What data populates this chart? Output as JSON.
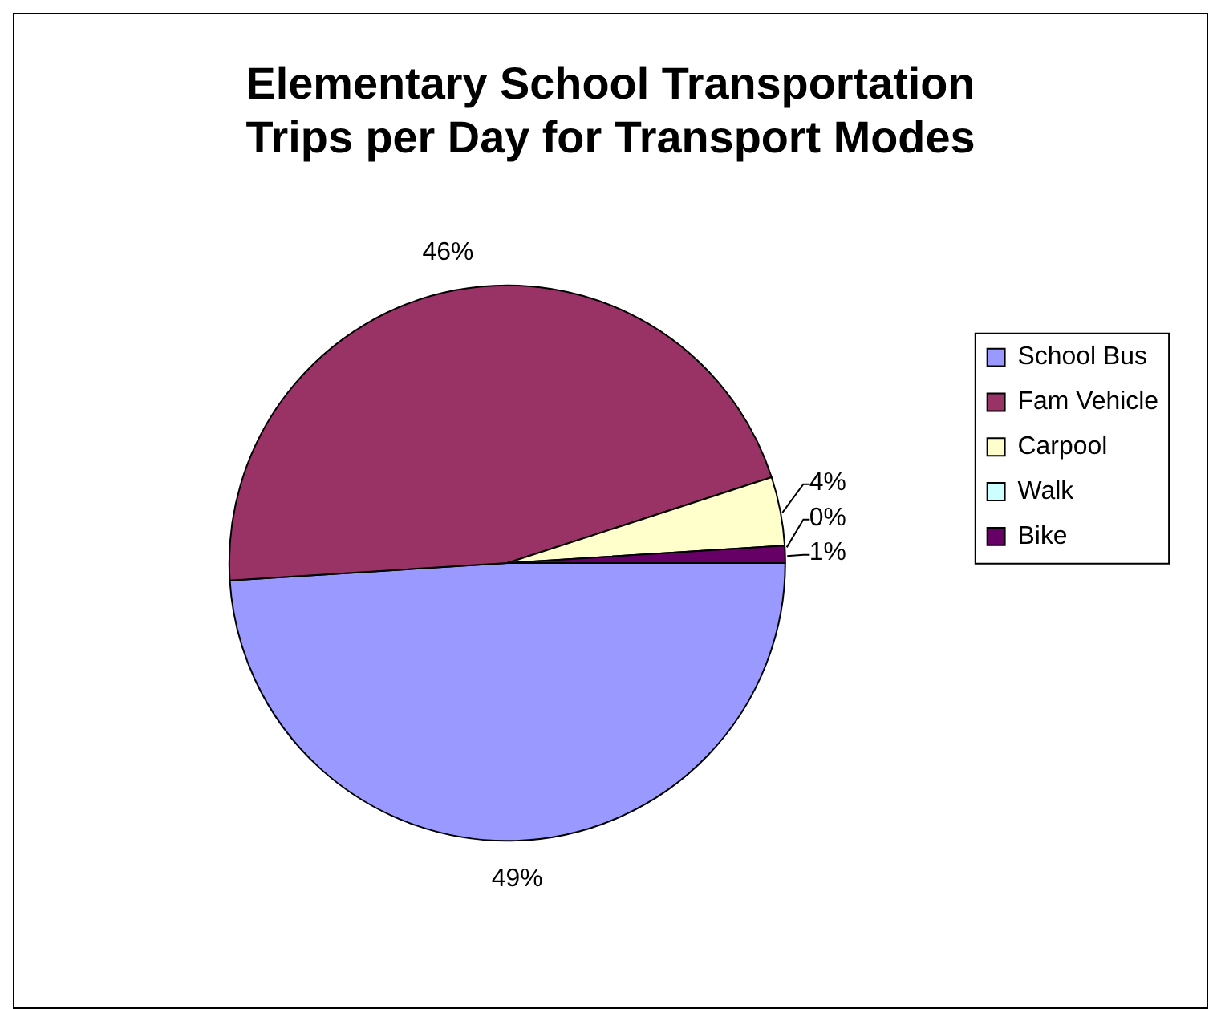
{
  "chart_data": {
    "type": "pie",
    "title": "Elementary School Transportation Trips per Day for Transport Modes",
    "categories": [
      "School Bus",
      "Fam Vehicle",
      "Carpool",
      "Walk",
      "Bike"
    ],
    "values": [
      49,
      46,
      4,
      0,
      1
    ],
    "value_labels": [
      "49%",
      "46%",
      "4%",
      "0%",
      "1%"
    ],
    "colors": [
      "#9999ff",
      "#993366",
      "#ffffcc",
      "#ccffff",
      "#660066"
    ],
    "legend": "right"
  }
}
